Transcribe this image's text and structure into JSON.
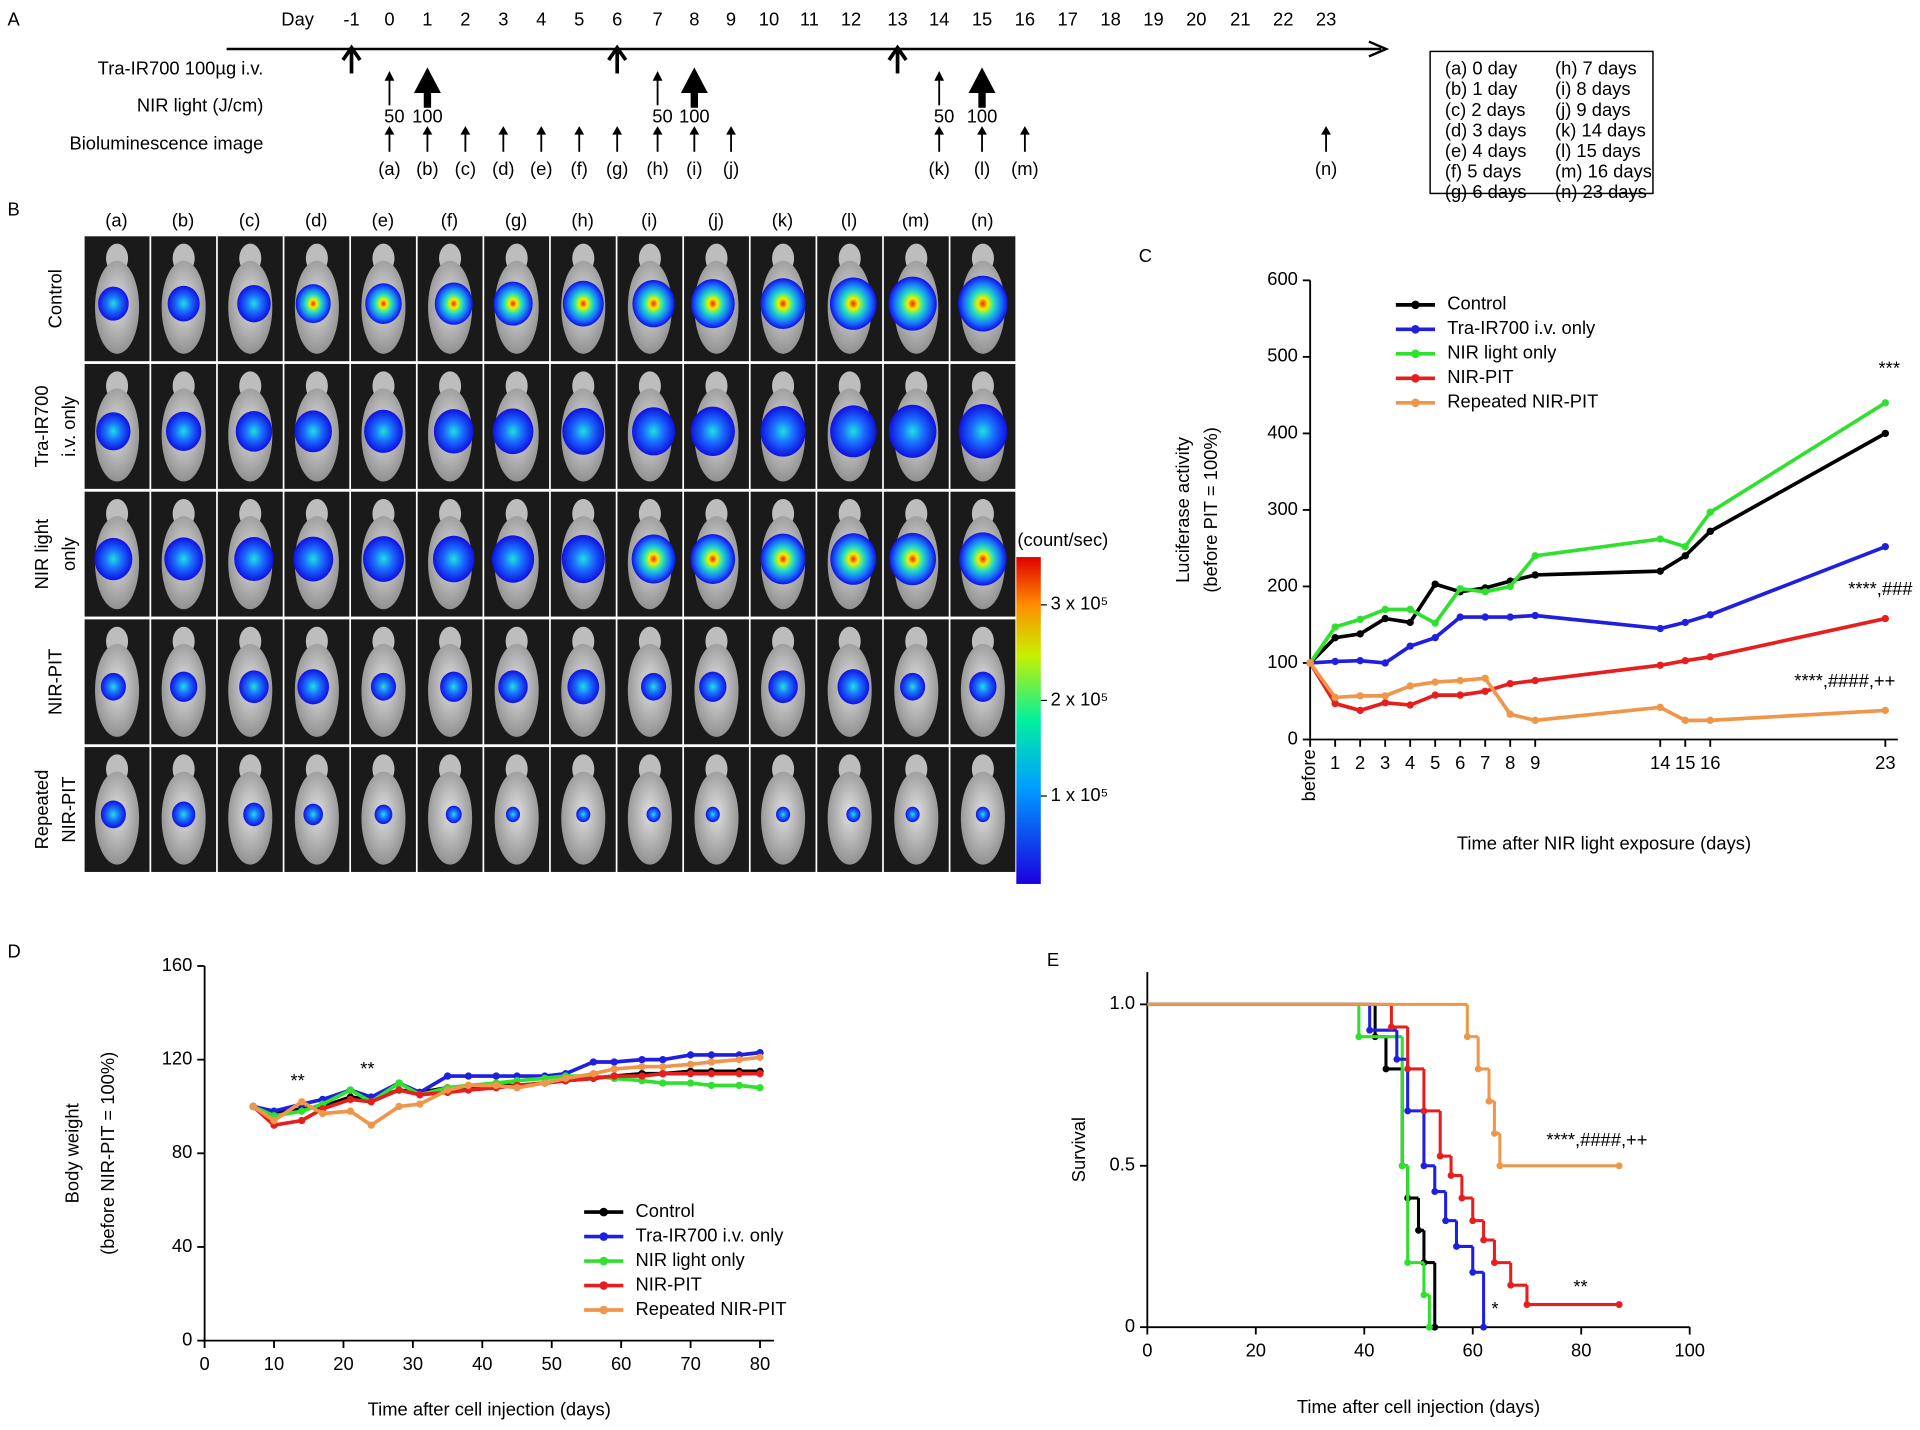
{
  "panel_labels": [
    "A",
    "B",
    "C",
    "D",
    "E"
  ],
  "panel_a": {
    "day_label": "Day",
    "days": [
      -1,
      0,
      1,
      2,
      3,
      4,
      5,
      6,
      7,
      8,
      9,
      10,
      11,
      12,
      13,
      14,
      15,
      16,
      17,
      18,
      19,
      20,
      21,
      22,
      23
    ],
    "rows": [
      {
        "label": "Tra-IR700 100µg i.v.",
        "days": [
          -1,
          6,
          13
        ]
      },
      {
        "label": "NIR light (J/cm)",
        "days": [
          0,
          1,
          7,
          8,
          14,
          15
        ],
        "doses": [
          50,
          100,
          50,
          100,
          50,
          100
        ]
      },
      {
        "label": "Bioluminescence image",
        "days": [
          0,
          1,
          2,
          3,
          4,
          5,
          6,
          7,
          8,
          9,
          14,
          15,
          16,
          23
        ],
        "images": [
          "(a)",
          "(b)",
          "(c)",
          "(d)",
          "(e)",
          "(f)",
          "(g)",
          "(h)",
          "(i)",
          "(j)",
          "(k)",
          "(l)",
          "(m)",
          "(n)"
        ]
      }
    ],
    "legend": [
      "(a)  0 day",
      "(b)  1 day",
      "(c)  2 days",
      "(d)  3 days",
      "(e)  4 days",
      "(f)  5 days",
      "(g)  6 days",
      "(h)  7 days",
      "(i)  8 days",
      "(j)  9 days",
      "(k)  14 days",
      "(l)  15 days",
      "(m)  16 days",
      "(n)  23 days"
    ]
  },
  "panel_b": {
    "columns": [
      "(a)",
      "(b)",
      "(c)",
      "(d)",
      "(e)",
      "(f)",
      "(g)",
      "(h)",
      "(i)",
      "(j)",
      "(k)",
      "(l)",
      "(m)",
      "(n)"
    ],
    "rows": [
      [
        "Control"
      ],
      [
        "Tra-IR700",
        "i.v. only"
      ],
      [
        "NIR light",
        "only"
      ],
      [
        "NIR-PIT"
      ],
      [
        "Repeated",
        "NIR-PIT"
      ]
    ],
    "colorbar": {
      "title": "(count/sec)",
      "lim": [
        8000,
        350000
      ],
      "ticks": [
        {
          "value": 300000,
          "label": "3 x 10⁵"
        },
        {
          "value": 200000,
          "label": "2 x 10⁵"
        },
        {
          "value": 100000,
          "label": "1 x 10⁵"
        }
      ]
    }
  },
  "chart_data": [
    {
      "type": "line",
      "ylabel": [
        "Luciferase activity",
        "(before PIT = 100%)"
      ],
      "xlabel": "Time after NIR light exposure (days)",
      "x": [
        0,
        1,
        2,
        3,
        4,
        5,
        6,
        7,
        8,
        9,
        14,
        15,
        16,
        23
      ],
      "xlim": [
        0,
        23.5
      ],
      "xticks": [
        {
          "value": 0,
          "label": "before"
        },
        1,
        2,
        3,
        4,
        5,
        6,
        7,
        8,
        9,
        14,
        15,
        16,
        23
      ],
      "ylim": [
        0,
        600
      ],
      "yticks": [
        0,
        100,
        200,
        300,
        400,
        500,
        600
      ],
      "legend": "top-left",
      "series": [
        {
          "name": "Control",
          "color": "#000000",
          "values": [
            100,
            133,
            138,
            158,
            153,
            203,
            193,
            198,
            207,
            215,
            220,
            240,
            272,
            400
          ]
        },
        {
          "name": "Tra-IR700 i.v. only",
          "color": "#1f1fe0",
          "values": [
            100,
            102,
            103,
            100,
            122,
            133,
            160,
            160,
            160,
            162,
            145,
            153,
            163,
            252
          ]
        },
        {
          "name": "NIR light only",
          "color": "#2fe02f",
          "values": [
            100,
            147,
            157,
            170,
            170,
            152,
            197,
            193,
            200,
            240,
            262,
            252,
            297,
            440
          ]
        },
        {
          "name": "NIR-PIT",
          "color": "#e61e1e",
          "values": [
            100,
            47,
            38,
            48,
            45,
            58,
            58,
            63,
            73,
            77,
            97,
            103,
            108,
            158
          ]
        },
        {
          "name": "Repeated NIR-PIT",
          "color": "#f0964b",
          "values": [
            100,
            55,
            57,
            57,
            70,
            75,
            77,
            80,
            33,
            25,
            42,
            25,
            25,
            38
          ]
        }
      ],
      "annotations": [
        "***",
        "****,###",
        "****,####,++"
      ]
    },
    {
      "type": "line",
      "ylabel": [
        "Body weight",
        "(before NIR-PIT = 100%)"
      ],
      "xlabel": "Time after cell injection (days)",
      "x": [
        7,
        10,
        14,
        17,
        21,
        24,
        28,
        31,
        35,
        38,
        42,
        45,
        49,
        52,
        56,
        59,
        63,
        66,
        70,
        73,
        77,
        80
      ],
      "xlim": [
        0,
        82
      ],
      "xticks": [
        0,
        10,
        20,
        30,
        40,
        50,
        60,
        70,
        80
      ],
      "ylim": [
        0,
        160
      ],
      "yticks": [
        0,
        40,
        80,
        120,
        160
      ],
      "legend": "bottom-right",
      "series": [
        {
          "name": "Control",
          "color": "#000000",
          "values": [
            100,
            97,
            99,
            100,
            104,
            103,
            107,
            106,
            108,
            108,
            109,
            109,
            110,
            111,
            112,
            113,
            114,
            114,
            115,
            115,
            115,
            115
          ]
        },
        {
          "name": "Tra-IR700 i.v. only",
          "color": "#1f1fe0",
          "values": [
            100,
            98,
            101,
            103,
            107,
            104,
            110,
            106,
            113,
            113,
            113,
            113,
            113,
            114,
            119,
            119,
            120,
            120,
            122,
            122,
            122,
            123
          ]
        },
        {
          "name": "NIR light only",
          "color": "#2fe02f",
          "values": [
            100,
            96,
            98,
            101,
            107,
            102,
            110,
            105,
            108,
            109,
            110,
            111,
            112,
            113,
            113,
            112,
            111,
            110,
            110,
            109,
            109,
            108
          ]
        },
        {
          "name": "NIR-PIT",
          "color": "#e61e1e",
          "values": [
            100,
            92,
            94,
            99,
            103,
            102,
            107,
            105,
            106,
            107,
            108,
            109,
            110,
            111,
            112,
            113,
            113,
            114,
            114,
            114,
            114,
            114
          ]
        },
        {
          "name": "Repeated NIR-PIT",
          "color": "#f0964b",
          "values": [
            100,
            94,
            102,
            97,
            98,
            92,
            100,
            101,
            107,
            109,
            109,
            108,
            110,
            112,
            114,
            116,
            117,
            117,
            118,
            119,
            120,
            121
          ]
        }
      ],
      "annotations": [
        "**",
        "**"
      ]
    },
    {
      "type": "step",
      "ylabel": [
        "Survival"
      ],
      "xlabel": "Time after cell injection (days)",
      "xlim": [
        0,
        100
      ],
      "xticks": [
        0,
        20,
        40,
        60,
        80,
        100
      ],
      "ylim": [
        0,
        1.1
      ],
      "yticks": [
        0,
        0.5,
        {
          "value": 1,
          "label": "1.0"
        }
      ],
      "series": [
        {
          "color": "#000000",
          "x": [
            0,
            42,
            44,
            47,
            48,
            50,
            51,
            53
          ],
          "values": [
            1,
            0.9,
            0.8,
            0.5,
            0.4,
            0.3,
            0.2,
            0
          ]
        },
        {
          "color": "#2fe02f",
          "x": [
            0,
            39,
            47,
            48,
            51,
            52
          ],
          "values": [
            1,
            0.9,
            0.5,
            0.2,
            0.1,
            0
          ]
        },
        {
          "color": "#1f1fe0",
          "x": [
            0,
            41,
            46,
            48,
            51,
            53,
            55,
            57,
            60,
            62
          ],
          "values": [
            1,
            0.92,
            0.83,
            0.67,
            0.5,
            0.42,
            0.33,
            0.25,
            0.17,
            0
          ]
        },
        {
          "color": "#e61e1e",
          "x": [
            0,
            45,
            48,
            51,
            54,
            56,
            58,
            60,
            62,
            64,
            67,
            70,
            87
          ],
          "values": [
            1,
            0.93,
            0.8,
            0.67,
            0.53,
            0.47,
            0.4,
            0.33,
            0.27,
            0.2,
            0.13,
            0.07,
            0.07
          ]
        },
        {
          "color": "#f0964b",
          "x": [
            0,
            59,
            61,
            63,
            64,
            65,
            87
          ],
          "values": [
            1,
            0.9,
            0.8,
            0.7,
            0.6,
            0.5,
            0.5
          ]
        }
      ],
      "annotations": [
        "****,####,++",
        "**",
        "*"
      ]
    }
  ]
}
